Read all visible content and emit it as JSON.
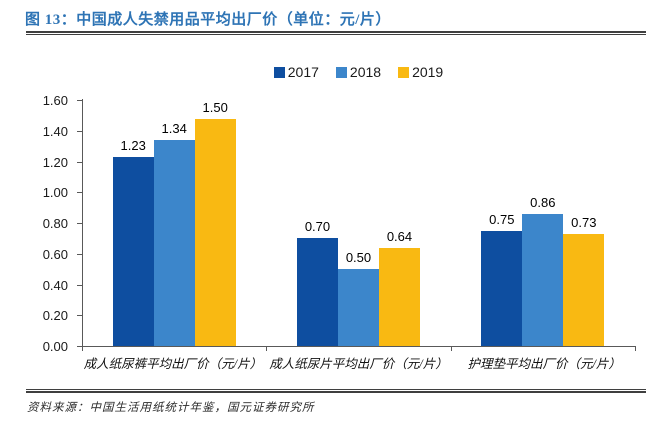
{
  "header": {
    "title": "图 13：中国成人失禁用品平均出厂价（单位：元/片）"
  },
  "footer": {
    "source": "资料来源：中国生活用纸统计年鉴，国元证券研究所"
  },
  "colors": {
    "title_blue": "#2E74B5",
    "rule_dark": "#3F3F3F",
    "axis_gray": "#595959",
    "series_2017": "#0E4EA0",
    "series_2018": "#3C86CB",
    "series_2019": "#F9B912"
  },
  "chart_data": {
    "type": "bar",
    "title": "中国成人失禁用品平均出厂价（单位：元/片）",
    "categories": [
      "成人纸尿裤平均出厂价（元/片）",
      "成人纸尿片平均出厂价（元/片）",
      "护理垫平均出厂价（元/片）"
    ],
    "series": [
      {
        "name": "2017",
        "color": "#0E4EA0",
        "values": [
          1.23,
          0.7,
          0.75
        ]
      },
      {
        "name": "2018",
        "color": "#3C86CB",
        "values": [
          1.34,
          0.5,
          0.86
        ]
      },
      {
        "name": "2019",
        "color": "#F9B912",
        "values": [
          1.5,
          0.64,
          0.73
        ]
      }
    ],
    "xlabel": "",
    "ylabel": "",
    "ylim": [
      0.0,
      1.6
    ],
    "ytick_step": 0.2,
    "yticks": [
      "0.00",
      "0.20",
      "0.40",
      "0.60",
      "0.80",
      "1.00",
      "1.20",
      "1.40",
      "1.60"
    ],
    "grid": false,
    "legend_position": "top",
    "value_labels": true,
    "value_label_format": "0.00"
  }
}
